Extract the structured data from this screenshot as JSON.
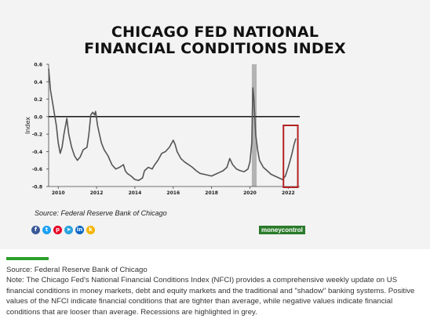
{
  "title_line1": "CHICAGO FED NATIONAL",
  "title_line2": "FINANCIAL CONDITIONS INDEX",
  "source_inside": "Source: Federal Reserve Bank of Chicago",
  "brand_label": "moneycontrol",
  "social_icons": [
    "facebook-icon",
    "twitter-icon",
    "pinterest-icon",
    "telegram-icon",
    "linkedin-icon",
    "koo-icon"
  ],
  "social_colors": [
    "#3b5998",
    "#1da1f2",
    "#e60023",
    "#2aa3df",
    "#0a66c2",
    "#f4b400"
  ],
  "caption_source": "Source: Federal Reserve Bank of Chicago",
  "caption_note": "Note: The Chicago Fed's National Financial Conditions Index (NFCI) provides a comprehensive weekly update on US financial conditions in money markets, debt and equity markets and the traditional and \"shadow\" banking systems. Positive values of the NFCI indicate financial conditions that are tighter than average, while negative values indicate financial conditions that are looser than average. Recessions are highlighted in grey.",
  "colors": {
    "line": "#555555",
    "recession": "#b3b3b3",
    "highlight": "#b22222",
    "zero_line": "#000000",
    "accent_green": "#2ca02c"
  },
  "chart_data": {
    "type": "line",
    "ylabel": "Index",
    "ylim": [
      -0.8,
      0.6
    ],
    "xlim": [
      2009.5,
      2022.6
    ],
    "yticks": [
      0.6,
      0.4,
      0.2,
      0.0,
      -0.2,
      -0.4,
      -0.6,
      -0.8
    ],
    "ytick_labels": [
      "0.6",
      "0.4",
      "0.2",
      "0.0",
      "-0.2",
      "-0.4",
      "-0.6",
      "-0.8"
    ],
    "xticks": [
      2010,
      2012,
      2014,
      2016,
      2018,
      2020,
      2022
    ],
    "xtick_labels": [
      "2010",
      "2012",
      "2014",
      "2016",
      "2018",
      "2020",
      "2022"
    ],
    "recession_shading": [
      [
        2020.1,
        2020.35
      ]
    ],
    "highlight_box_x": [
      2021.75,
      2022.5
    ],
    "grid": false,
    "series": [
      {
        "x": [
          2009.5,
          2009.6,
          2009.75,
          2009.9,
          2010.0,
          2010.1,
          2010.2,
          2010.3,
          2010.45,
          2010.55,
          2010.7,
          2010.85,
          2011.0,
          2011.15,
          2011.3,
          2011.5,
          2011.6,
          2011.7,
          2011.8,
          2011.9,
          2011.95,
          2012.05,
          2012.15,
          2012.25,
          2012.4,
          2012.6,
          2012.8,
          2013.0,
          2013.2,
          2013.4,
          2013.5,
          2013.6,
          2013.8,
          2014.0,
          2014.2,
          2014.4,
          2014.5,
          2014.7,
          2014.9,
          2015.0,
          2015.2,
          2015.4,
          2015.6,
          2015.8,
          2016.0,
          2016.1,
          2016.2,
          2016.4,
          2016.6,
          2016.8,
          2017.0,
          2017.2,
          2017.4,
          2017.6,
          2017.8,
          2018.0,
          2018.2,
          2018.4,
          2018.6,
          2018.8,
          2018.95,
          2019.1,
          2019.3,
          2019.5,
          2019.7,
          2019.9,
          2020.0,
          2020.1,
          2020.15,
          2020.2,
          2020.25,
          2020.3,
          2020.4,
          2020.5,
          2020.7,
          2020.9,
          2021.1,
          2021.3,
          2021.5,
          2021.7,
          2021.85,
          2022.0,
          2022.1,
          2022.2,
          2022.3,
          2022.4
        ],
        "y": [
          0.55,
          0.3,
          0.1,
          -0.1,
          -0.3,
          -0.42,
          -0.35,
          -0.2,
          -0.02,
          -0.2,
          -0.35,
          -0.45,
          -0.5,
          -0.46,
          -0.38,
          -0.35,
          -0.2,
          0.02,
          0.05,
          0.02,
          0.06,
          -0.1,
          -0.2,
          -0.3,
          -0.38,
          -0.45,
          -0.55,
          -0.6,
          -0.58,
          -0.55,
          -0.62,
          -0.65,
          -0.68,
          -0.72,
          -0.73,
          -0.7,
          -0.62,
          -0.58,
          -0.6,
          -0.56,
          -0.5,
          -0.42,
          -0.4,
          -0.35,
          -0.27,
          -0.32,
          -0.4,
          -0.48,
          -0.52,
          -0.55,
          -0.58,
          -0.62,
          -0.65,
          -0.66,
          -0.67,
          -0.68,
          -0.66,
          -0.64,
          -0.62,
          -0.58,
          -0.48,
          -0.55,
          -0.6,
          -0.62,
          -0.63,
          -0.6,
          -0.52,
          -0.3,
          0.33,
          0.22,
          0.02,
          -0.2,
          -0.38,
          -0.5,
          -0.58,
          -0.62,
          -0.66,
          -0.68,
          -0.7,
          -0.72,
          -0.68,
          -0.58,
          -0.5,
          -0.42,
          -0.32,
          -0.25
        ]
      }
    ]
  }
}
